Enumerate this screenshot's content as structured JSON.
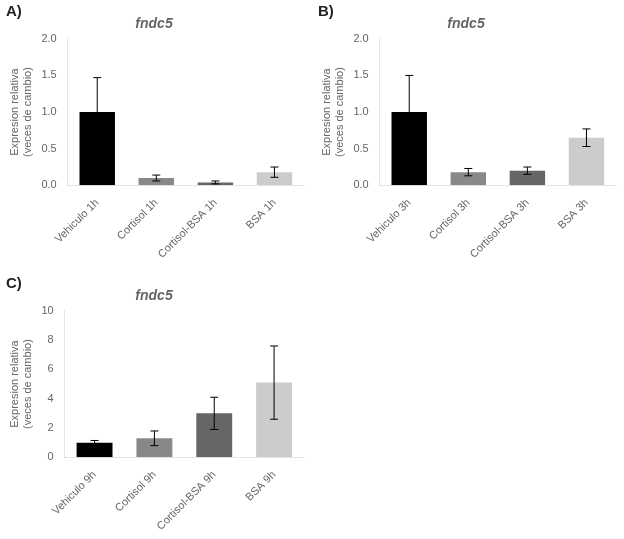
{
  "chart_data": [
    {
      "type": "bar",
      "title": "fndc5",
      "annotations": [
        "A)"
      ],
      "categories": [
        "Vehiculo 1h",
        "Cortisol 1h",
        "Cortisol-BSA 1h",
        "BSA 1h"
      ],
      "values": [
        1.0,
        0.1,
        0.04,
        0.18
      ],
      "errors": [
        0.47,
        0.04,
        0.02,
        0.07
      ],
      "colors": [
        "#000000",
        "#888888",
        "#666666",
        "#cccccc"
      ],
      "ylabel": "Expresion relativa\n(veces de cambio)",
      "ylim": [
        0,
        2.0
      ],
      "yticks": [
        {
          "value": 0,
          "label": "0.0"
        },
        0.5,
        {
          "value": 1,
          "label": "1.0"
        },
        1.5,
        {
          "value": 2,
          "label": "2.0"
        }
      ],
      "grid": false
    },
    {
      "type": "bar",
      "title": "fndc5",
      "annotations": [
        "B)"
      ],
      "categories": [
        "Vehiculo 3h",
        "Cortisol 3h",
        "Cortisol-BSA 3h",
        "BSA 3h"
      ],
      "values": [
        1.0,
        0.18,
        0.2,
        0.65
      ],
      "errors": [
        0.5,
        0.05,
        0.05,
        0.12
      ],
      "colors": [
        "#000000",
        "#888888",
        "#666666",
        "#cccccc"
      ],
      "ylabel": "Expresion relativa\n(veces de cambio)",
      "ylim": [
        0,
        2.0
      ],
      "yticks": [
        {
          "value": 0,
          "label": "0.0"
        },
        0.5,
        {
          "value": 1,
          "label": "1.0"
        },
        1.5,
        {
          "value": 2,
          "label": "2.0"
        }
      ],
      "grid": false
    },
    {
      "type": "bar",
      "title": "fndc5",
      "annotations": [
        "C)"
      ],
      "categories": [
        "Vehiculo 9h",
        "Cortisol 9h",
        "Cortisol-BSA 9h",
        "BSA 9h"
      ],
      "values": [
        1.0,
        1.3,
        3.0,
        5.1
      ],
      "errors": [
        0.15,
        0.5,
        1.1,
        2.5
      ],
      "colors": [
        "#000000",
        "#888888",
        "#666666",
        "#cccccc"
      ],
      "ylabel": "Expresion relativa\n(veces de cambio)",
      "ylim": [
        0,
        10.0
      ],
      "yticks": [
        0,
        2,
        4,
        6,
        8,
        10
      ],
      "grid": false
    }
  ]
}
